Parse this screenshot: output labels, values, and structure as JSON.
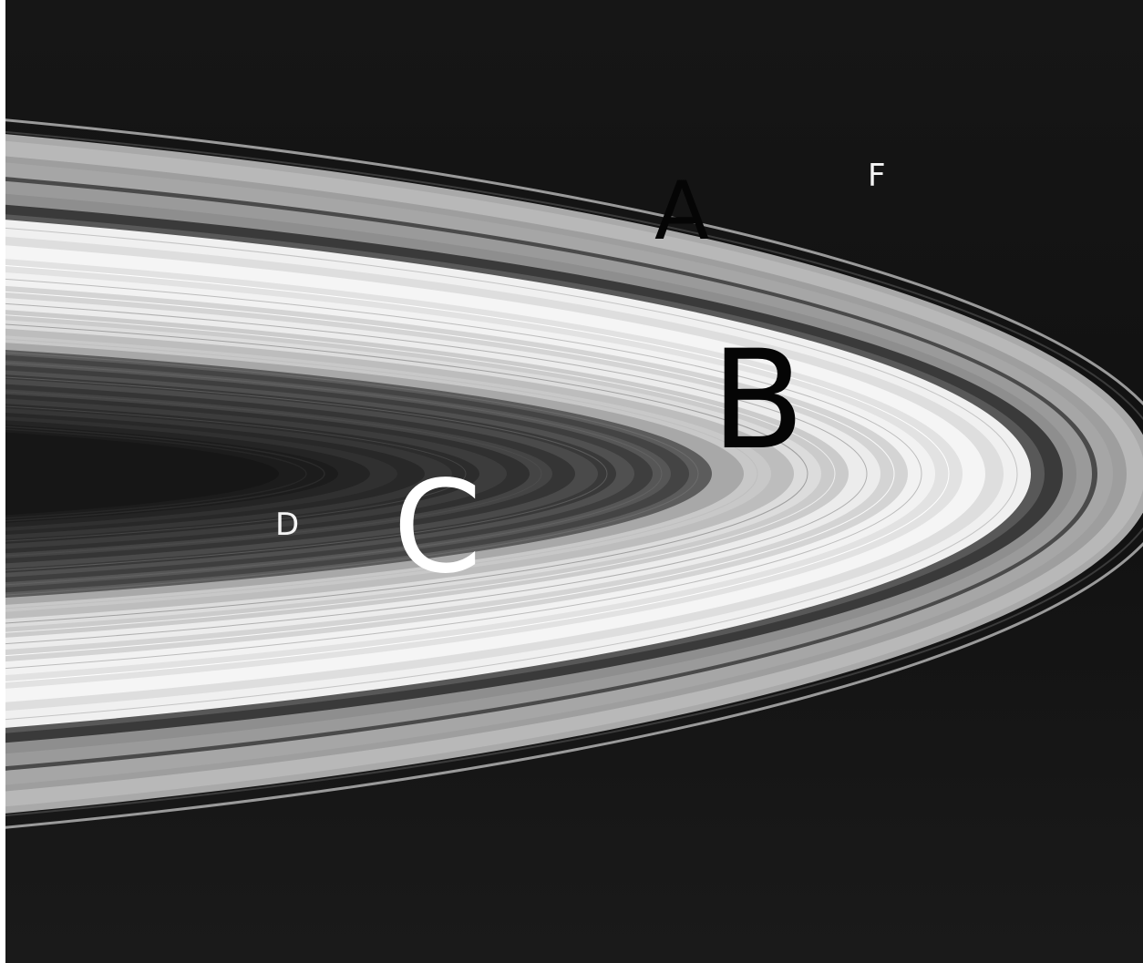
{
  "image": {
    "subject": "saturn-ring-system",
    "background_color": "#141414",
    "labels": {
      "a": "A",
      "b": "B",
      "c": "C",
      "d": "D",
      "f": "F"
    }
  }
}
